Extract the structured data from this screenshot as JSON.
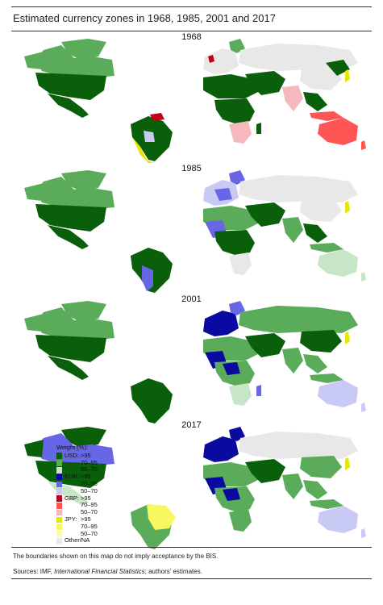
{
  "title": "Estimated currency zones in 1968, 1985, 2001 and 2017",
  "panels": [
    {
      "year": "1968"
    },
    {
      "year": "1985"
    },
    {
      "year": "2001"
    },
    {
      "year": "2017"
    }
  ],
  "legend": {
    "title": "Weight (%):",
    "currencies": [
      {
        "name": "USD:",
        "shades": [
          ">95",
          "70–95",
          "50–70"
        ],
        "colors": [
          "#0a5f0a",
          "#5aac5a",
          "#c7e6c7"
        ]
      },
      {
        "name": "EUR:",
        "shades": [
          ">95",
          "70–95",
          "50–70"
        ],
        "colors": [
          "#0a0aa0",
          "#6666e6",
          "#c9c9f5"
        ]
      },
      {
        "name": "GBP:",
        "shades": [
          ">95",
          "70–95",
          "50–70"
        ],
        "colors": [
          "#c00018",
          "#ff5555",
          "#f5b9bd"
        ]
      },
      {
        "name": "JPY:",
        "shades": [
          ">95",
          "70–95",
          "50–70"
        ],
        "colors": [
          "#e6e600",
          "#f7f760",
          "#fbfbb8"
        ]
      }
    ],
    "other": {
      "label": "Other/NA",
      "color": "#e8e8e8"
    }
  },
  "note": "The boundaries shown on this map do not imply acceptance by the BIS.",
  "sources": {
    "prefix": "Sources: IMF, ",
    "italic": "International Financial Statistics",
    "suffix": "; authors’ estimates."
  }
}
